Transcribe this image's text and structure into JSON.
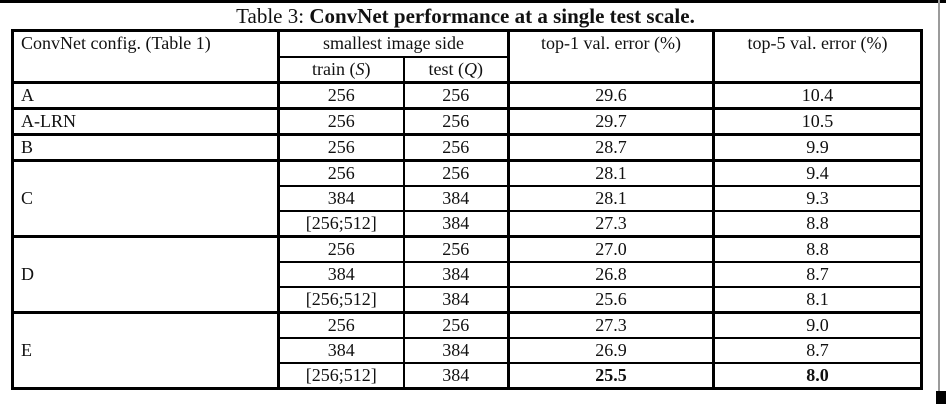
{
  "caption": {
    "prefix": "Table 3: ",
    "title": "ConvNet performance at a single test scale."
  },
  "table": {
    "headers": {
      "config": "ConvNet config. (Table 1)",
      "smallest_image_side": "smallest image side",
      "train_prefix": "train (",
      "train_var": "S",
      "test_prefix": "test (",
      "test_var": "Q",
      "close_paren": ")",
      "top1": "top-1 val. error (%)",
      "top5": "top-5 val. error (%)"
    },
    "groups": [
      {
        "config": "A",
        "rows": [
          {
            "train": "256",
            "test": "256",
            "top1": "29.6",
            "top5": "10.4"
          }
        ]
      },
      {
        "config": "A-LRN",
        "rows": [
          {
            "train": "256",
            "test": "256",
            "top1": "29.7",
            "top5": "10.5"
          }
        ]
      },
      {
        "config": "B",
        "rows": [
          {
            "train": "256",
            "test": "256",
            "top1": "28.7",
            "top5": "9.9"
          }
        ]
      },
      {
        "config": "C",
        "rows": [
          {
            "train": "256",
            "test": "256",
            "top1": "28.1",
            "top5": "9.4"
          },
          {
            "train": "384",
            "test": "384",
            "top1": "28.1",
            "top5": "9.3"
          },
          {
            "train": "[256;512]",
            "test": "384",
            "top1": "27.3",
            "top5": "8.8"
          }
        ]
      },
      {
        "config": "D",
        "rows": [
          {
            "train": "256",
            "test": "256",
            "top1": "27.0",
            "top5": "8.8"
          },
          {
            "train": "384",
            "test": "384",
            "top1": "26.8",
            "top5": "8.7"
          },
          {
            "train": "[256;512]",
            "test": "384",
            "top1": "25.6",
            "top5": "8.1"
          }
        ]
      },
      {
        "config": "E",
        "rows": [
          {
            "train": "256",
            "test": "256",
            "top1": "27.3",
            "top5": "9.0"
          },
          {
            "train": "384",
            "test": "384",
            "top1": "26.9",
            "top5": "8.7"
          },
          {
            "train": "[256;512]",
            "test": "384",
            "top1": "25.5",
            "top5": "8.0",
            "bold": true
          }
        ]
      }
    ]
  }
}
